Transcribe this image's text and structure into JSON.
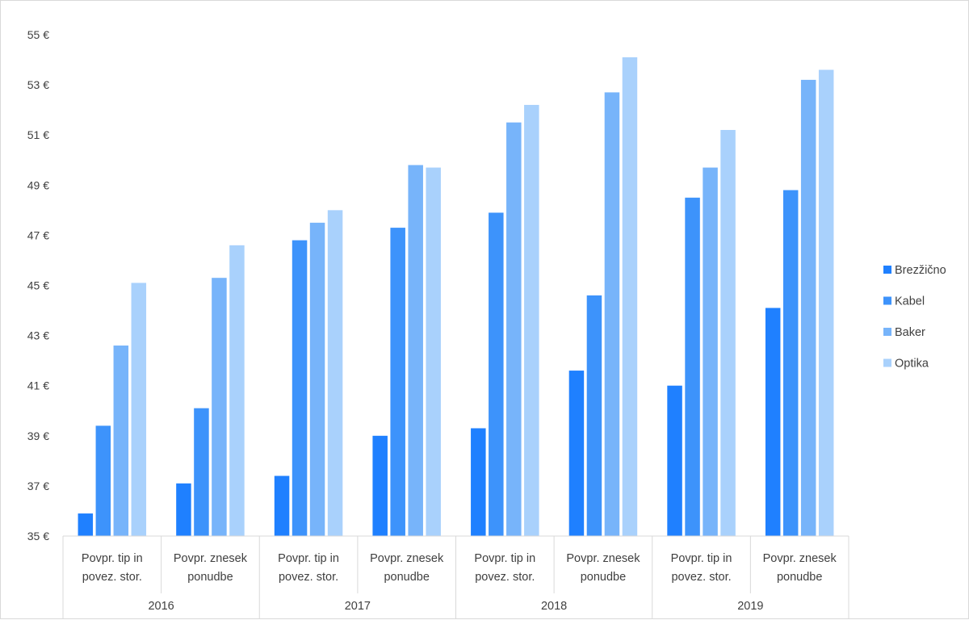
{
  "chart_data": {
    "type": "bar",
    "title": "",
    "xlabel": "",
    "ylabel": "",
    "ylim": [
      35,
      55
    ],
    "y_ticks": [
      "35 €",
      "37 €",
      "39 €",
      "41 €",
      "43 €",
      "45 €",
      "47 €",
      "49 €",
      "51 €",
      "53 €",
      "55 €"
    ],
    "legend_position": "right",
    "groups": [
      {
        "label": "2016",
        "categories": [
          "Povpr. tip in povez. stor.",
          "Povpr. znesek ponudbe"
        ]
      },
      {
        "label": "2017",
        "categories": [
          "Povpr. tip in povez. stor.",
          "Povpr. znesek ponudbe"
        ]
      },
      {
        "label": "2018",
        "categories": [
          "Povpr. tip in povez. stor.",
          "Povpr. znesek ponudbe"
        ]
      },
      {
        "label": "2019",
        "categories": [
          "Povpr. tip in povez. stor.",
          "Povpr. znesek ponudbe"
        ]
      }
    ],
    "category_lines": [
      [
        "Povpr. tip in",
        "povez. stor."
      ],
      [
        "Povpr. znesek",
        "ponudbe"
      ]
    ],
    "series": [
      {
        "name": "Brezžično",
        "color": "#1f80ff",
        "values": [
          35.9,
          37.1,
          37.4,
          39.0,
          39.3,
          41.6,
          41.0,
          44.1
        ]
      },
      {
        "name": "Kabel",
        "color": "#3d93fb",
        "values": [
          39.4,
          40.1,
          46.8,
          47.3,
          47.9,
          44.6,
          48.5,
          48.8
        ]
      },
      {
        "name": "Baker",
        "color": "#77b4fa",
        "values": [
          42.6,
          45.3,
          47.5,
          49.8,
          51.5,
          52.7,
          49.7,
          53.2
        ]
      },
      {
        "name": "Optika",
        "color": "#a9d1fc",
        "values": [
          45.1,
          46.6,
          48.0,
          49.7,
          52.2,
          54.1,
          51.2,
          53.6
        ]
      }
    ]
  }
}
